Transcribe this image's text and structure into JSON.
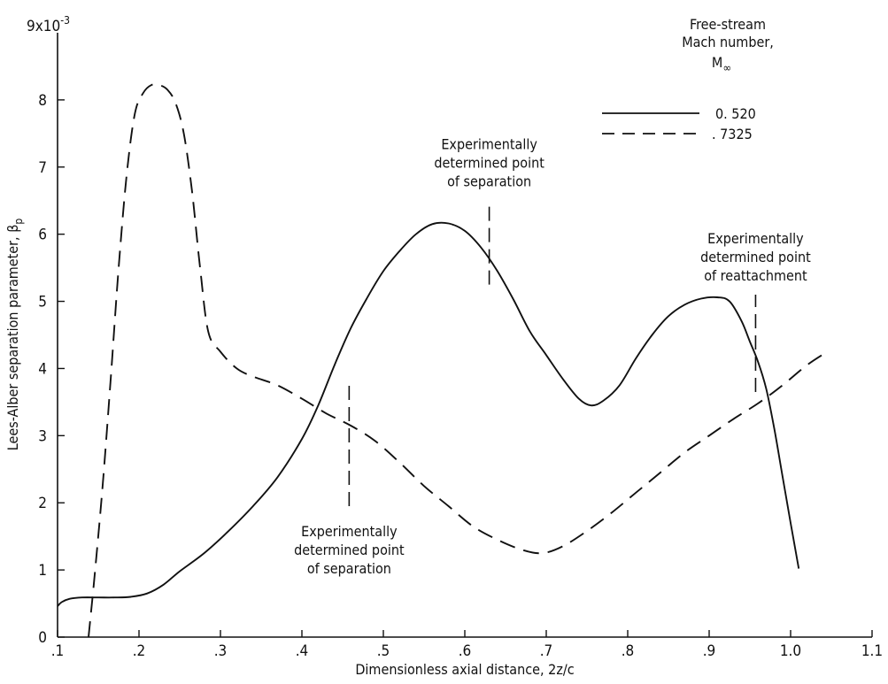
{
  "chart_data": {
    "type": "line",
    "title": "",
    "xlabel": "Dimensionless axial distance, 2z/c",
    "ylabel": "Lees-Alber separation parameter, β",
    "ylabel_subscript": "p",
    "xlim": [
      0.1,
      1.1
    ],
    "ylim": [
      0,
      9
    ],
    "y_multiplier_label": "9x10",
    "y_multiplier_exponent": "-3",
    "x_ticks": [
      0.1,
      0.2,
      0.3,
      0.4,
      0.5,
      0.6,
      0.7,
      0.8,
      0.9,
      1.0,
      1.1
    ],
    "x_tick_labels": [
      ".1",
      ".2",
      ".3",
      ".4",
      ".5",
      ".6",
      ".7",
      ".8",
      ".9",
      "1.0",
      "1.1"
    ],
    "y_ticks": [
      0,
      1,
      2,
      3,
      4,
      5,
      6,
      7,
      8
    ],
    "y_tick_labels": [
      "0",
      "1",
      "2",
      "3",
      "4",
      "5",
      "6",
      "7",
      "8"
    ],
    "grid": false,
    "legend": {
      "placement": "top-right",
      "title_lines": [
        "Free-stream",
        "Mach number,"
      ],
      "symbol": "M",
      "symbol_subscript": "∞"
    },
    "series": [
      {
        "name": "0. 520",
        "style": "solid",
        "x": [
          0.1,
          0.105,
          0.115,
          0.13,
          0.15,
          0.17,
          0.19,
          0.21,
          0.23,
          0.25,
          0.28,
          0.31,
          0.34,
          0.37,
          0.4,
          0.42,
          0.44,
          0.46,
          0.48,
          0.5,
          0.52,
          0.54,
          0.56,
          0.58,
          0.6,
          0.62,
          0.64,
          0.66,
          0.68,
          0.7,
          0.72,
          0.74,
          0.755,
          0.77,
          0.79,
          0.81,
          0.83,
          0.85,
          0.87,
          0.89,
          0.91,
          0.925,
          0.94,
          0.95,
          0.96,
          0.97,
          0.98,
          0.99,
          1.0,
          1.01
        ],
        "y": [
          0.46,
          0.52,
          0.57,
          0.59,
          0.59,
          0.59,
          0.6,
          0.65,
          0.78,
          0.98,
          1.25,
          1.58,
          1.95,
          2.38,
          2.95,
          3.45,
          4.05,
          4.6,
          5.05,
          5.45,
          5.75,
          6.0,
          6.15,
          6.16,
          6.05,
          5.8,
          5.45,
          5.02,
          4.55,
          4.2,
          3.85,
          3.55,
          3.45,
          3.52,
          3.75,
          4.15,
          4.5,
          4.78,
          4.95,
          5.04,
          5.06,
          5.0,
          4.7,
          4.4,
          4.1,
          3.7,
          3.1,
          2.4,
          1.7,
          1.02
        ]
      },
      {
        "name": ". 7325",
        "style": "dashed",
        "x": [
          0.138,
          0.145,
          0.155,
          0.165,
          0.175,
          0.185,
          0.195,
          0.205,
          0.215,
          0.225,
          0.235,
          0.245,
          0.255,
          0.265,
          0.275,
          0.285,
          0.3,
          0.32,
          0.34,
          0.37,
          0.4,
          0.43,
          0.46,
          0.49,
          0.52,
          0.55,
          0.58,
          0.61,
          0.64,
          0.67,
          0.695,
          0.72,
          0.75,
          0.78,
          0.81,
          0.84,
          0.87,
          0.9,
          0.93,
          0.96,
          0.99,
          1.02,
          1.045
        ],
        "y": [
          0.0,
          0.85,
          2.2,
          3.8,
          5.5,
          6.9,
          7.8,
          8.1,
          8.22,
          8.22,
          8.15,
          7.95,
          7.5,
          6.65,
          5.5,
          4.55,
          4.25,
          4.0,
          3.88,
          3.75,
          3.55,
          3.33,
          3.15,
          2.92,
          2.6,
          2.25,
          1.95,
          1.65,
          1.45,
          1.3,
          1.25,
          1.35,
          1.58,
          1.85,
          2.15,
          2.45,
          2.75,
          3.0,
          3.25,
          3.48,
          3.75,
          4.05,
          4.25
        ]
      }
    ],
    "annotations": [
      {
        "lines": [
          "Experimentally",
          "determined point",
          "of separation"
        ],
        "x": 0.458,
        "y_from": 1.95,
        "y_to": 3.75,
        "anchor": "below"
      },
      {
        "lines": [
          "Experimentally",
          "determined point",
          "of separation"
        ],
        "x": 0.63,
        "y_from": 5.25,
        "y_to": 6.5,
        "anchor": "above"
      },
      {
        "lines": [
          "Experimentally",
          "determined point",
          "of reattachment"
        ],
        "x": 0.957,
        "y_from": 3.65,
        "y_to": 5.1,
        "anchor": "above"
      }
    ]
  }
}
